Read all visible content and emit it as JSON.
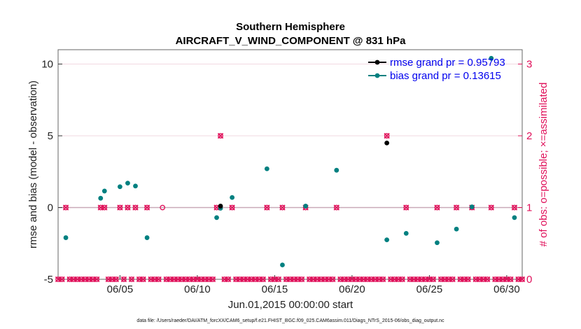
{
  "chart_data": {
    "type": "scatter",
    "title": "Southern Hemisphere",
    "subtitle": "AIRCRAFT_V_WIND_COMPONENT @ 831 hPa",
    "xlabel": "Jun.01,2015 00:00:00 start",
    "ylabel": "rmse and bias (model - observation)",
    "ylabel_right": "# of obs: o=possible; ×=assimilated",
    "footnote": "data file: /Users/raeder/DAI/ATM_forcXX/CAM6_setup/f.e21.FHIST_BGC.f09_025.CAM6assim.011/Diags_NTrS_2015-06/obs_diag_output.nc",
    "xlim": [
      1.0,
      31.0
    ],
    "ylim": [
      -5,
      11
    ],
    "ylim_right": [
      0,
      3.2
    ],
    "x_ticks": [
      {
        "value": 5,
        "label": "06/05"
      },
      {
        "value": 10,
        "label": "06/10"
      },
      {
        "value": 15,
        "label": "06/15"
      },
      {
        "value": 20,
        "label": "06/20"
      },
      {
        "value": 25,
        "label": "06/25"
      },
      {
        "value": 30,
        "label": "06/30"
      }
    ],
    "y_ticks": [
      {
        "value": -5,
        "label": "-5"
      },
      {
        "value": 0,
        "label": "0"
      },
      {
        "value": 5,
        "label": "5"
      },
      {
        "value": 10,
        "label": "10"
      }
    ],
    "y_ticks_right": [
      {
        "value": 0,
        "label": "0"
      },
      {
        "value": 1,
        "label": "1"
      },
      {
        "value": 2,
        "label": "2"
      },
      {
        "value": 3,
        "label": "3"
      }
    ],
    "legend_position": "top-right",
    "colors": {
      "rmse": "#000000",
      "bias": "#008080",
      "obs": "#e0105a",
      "zero_line": "#c9a9b8"
    },
    "series": [
      {
        "name": "rmse grand pr = 0.95793",
        "points": [
          [
            11.5,
            0.1
          ],
          [
            22.25,
            4.5
          ]
        ]
      },
      {
        "name": "bias grand pr = 0.13615",
        "points": [
          [
            1.5,
            -2.1
          ],
          [
            3.75,
            0.65
          ],
          [
            4.0,
            1.15
          ],
          [
            5.0,
            1.45
          ],
          [
            5.5,
            1.7
          ],
          [
            6.0,
            1.5
          ],
          [
            6.75,
            -2.1
          ],
          [
            11.25,
            -0.7
          ],
          [
            11.5,
            -0.05
          ],
          [
            12.25,
            0.7
          ],
          [
            14.5,
            2.7
          ],
          [
            15.5,
            -4.0
          ],
          [
            17.0,
            0.1
          ],
          [
            19.0,
            2.6
          ],
          [
            22.25,
            -2.25
          ],
          [
            23.5,
            -1.8
          ],
          [
            25.5,
            -2.45
          ],
          [
            26.75,
            -1.5
          ],
          [
            27.75,
            0.05
          ],
          [
            29.0,
            10.4
          ],
          [
            30.5,
            -0.7
          ]
        ]
      },
      {
        "name": "obs possible",
        "axis": "right",
        "points": [
          [
            1.5,
            1
          ],
          [
            3.75,
            1
          ],
          [
            4.0,
            1
          ],
          [
            5.0,
            1
          ],
          [
            5.5,
            1
          ],
          [
            6.0,
            1
          ],
          [
            6.75,
            1
          ],
          [
            7.75,
            1
          ],
          [
            11.25,
            1
          ],
          [
            11.5,
            2
          ],
          [
            12.25,
            1
          ],
          [
            14.5,
            1
          ],
          [
            15.5,
            1
          ],
          [
            17.0,
            1
          ],
          [
            19.0,
            1
          ],
          [
            22.25,
            2
          ],
          [
            23.5,
            1
          ],
          [
            25.5,
            1
          ],
          [
            26.75,
            1
          ],
          [
            27.75,
            1
          ],
          [
            29.0,
            1
          ],
          [
            30.5,
            1
          ]
        ]
      },
      {
        "name": "obs assimilated",
        "axis": "right",
        "points": [
          [
            1.5,
            1
          ],
          [
            3.75,
            1
          ],
          [
            4.0,
            1
          ],
          [
            5.0,
            1
          ],
          [
            5.5,
            1
          ],
          [
            6.0,
            1
          ],
          [
            6.75,
            1
          ],
          [
            11.25,
            1
          ],
          [
            11.5,
            2
          ],
          [
            12.25,
            1
          ],
          [
            14.5,
            1
          ],
          [
            15.5,
            1
          ],
          [
            17.0,
            1
          ],
          [
            19.0,
            1
          ],
          [
            22.25,
            2
          ],
          [
            23.5,
            1
          ],
          [
            25.5,
            1
          ],
          [
            26.75,
            1
          ],
          [
            27.75,
            1
          ],
          [
            29.0,
            1
          ],
          [
            30.5,
            1
          ]
        ]
      }
    ]
  }
}
